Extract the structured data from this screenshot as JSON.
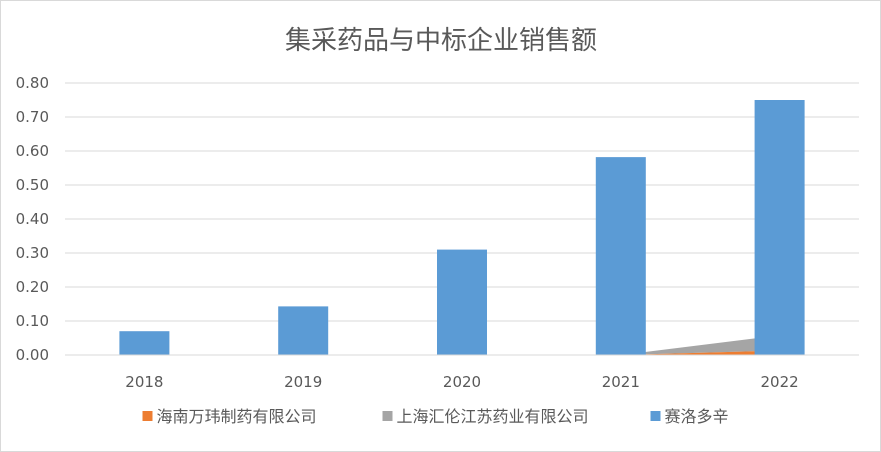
{
  "chart_data": {
    "type": "bar",
    "title": "集采药品与中标企业销售额",
    "xlabel": "",
    "ylabel": "",
    "categories": [
      "2018",
      "2019",
      "2020",
      "2021",
      "2022"
    ],
    "ylim": [
      0,
      0.8
    ],
    "yticks": [
      "0.00",
      "0.10",
      "0.20",
      "0.30",
      "0.40",
      "0.50",
      "0.60",
      "0.70",
      "0.80"
    ],
    "grid": true,
    "legend": "bottom",
    "series": [
      {
        "name": "海南万玮制药有限公司",
        "type": "area",
        "color": "#ED7D31",
        "values": [
          null,
          null,
          null,
          0.0,
          0.013
        ]
      },
      {
        "name": "上海汇伦江苏药业有限公司",
        "type": "area",
        "color": "#A5A5A5",
        "values": [
          null,
          null,
          null,
          0.0,
          0.045
        ]
      },
      {
        "name": "赛洛多辛",
        "type": "bar",
        "color": "#5B9BD5",
        "values": [
          0.07,
          0.143,
          0.31,
          0.582,
          0.75
        ]
      }
    ]
  }
}
